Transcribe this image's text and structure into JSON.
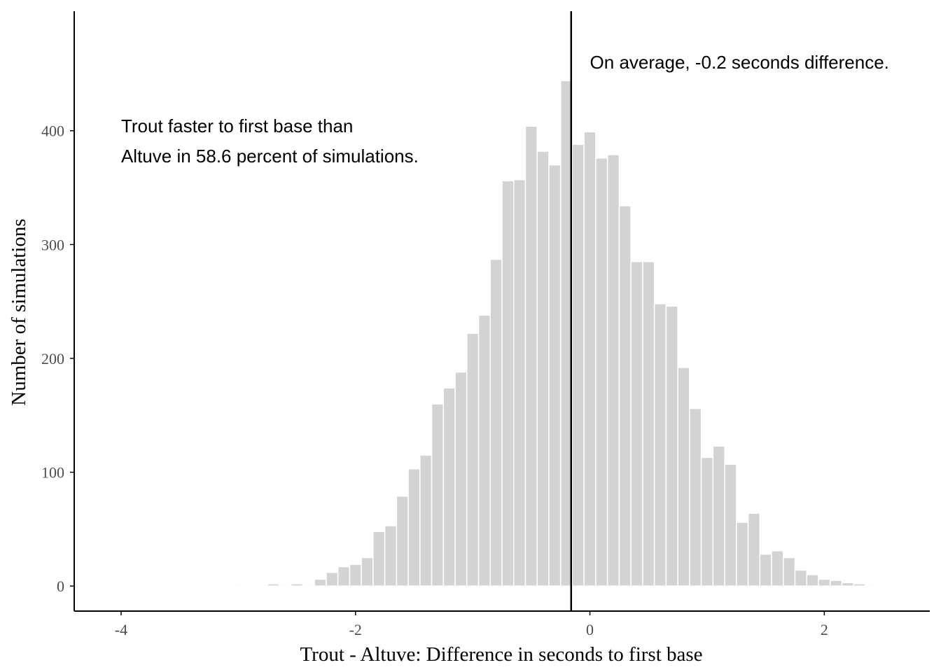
{
  "chart_data": {
    "type": "bar",
    "subtype": "histogram",
    "title": "",
    "xlabel": "Trout - Altuve: Difference in seconds to first base",
    "ylabel": "Number of simulations",
    "xlim": [
      -4.4,
      2.9
    ],
    "ylim": [
      -22,
      505
    ],
    "x_ticks": [
      {
        "value": -4,
        "label": "-4"
      },
      {
        "value": -2,
        "label": "-2"
      },
      {
        "value": 0,
        "label": "0"
      },
      {
        "value": 2,
        "label": "2"
      }
    ],
    "y_ticks": [
      {
        "value": 0,
        "label": "0"
      },
      {
        "value": 100,
        "label": "100"
      },
      {
        "value": 200,
        "label": "200"
      },
      {
        "value": 300,
        "label": "300"
      },
      {
        "value": 400,
        "label": "400"
      }
    ],
    "bin_width": 0.1,
    "series": [
      {
        "bins": [
          {
            "x": -3.0,
            "count": 1
          },
          {
            "x": -2.7,
            "count": 2
          },
          {
            "x": -2.6,
            "count": 1
          },
          {
            "x": -2.5,
            "count": 2
          },
          {
            "x": -2.4,
            "count": 1
          },
          {
            "x": -2.3,
            "count": 6
          },
          {
            "x": -2.2,
            "count": 12
          },
          {
            "x": -2.1,
            "count": 17
          },
          {
            "x": -2.0,
            "count": 19
          },
          {
            "x": -1.9,
            "count": 25
          },
          {
            "x": -1.8,
            "count": 48
          },
          {
            "x": -1.7,
            "count": 53
          },
          {
            "x": -1.6,
            "count": 79
          },
          {
            "x": -1.5,
            "count": 103
          },
          {
            "x": -1.4,
            "count": 115
          },
          {
            "x": -1.3,
            "count": 160
          },
          {
            "x": -1.2,
            "count": 174
          },
          {
            "x": -1.1,
            "count": 188
          },
          {
            "x": -1.0,
            "count": 222
          },
          {
            "x": -0.9,
            "count": 238
          },
          {
            "x": -0.8,
            "count": 287
          },
          {
            "x": -0.7,
            "count": 356
          },
          {
            "x": -0.6,
            "count": 357
          },
          {
            "x": -0.5,
            "count": 404
          },
          {
            "x": -0.4,
            "count": 382
          },
          {
            "x": -0.3,
            "count": 370
          },
          {
            "x": -0.2,
            "count": 444
          },
          {
            "x": -0.1,
            "count": 388
          },
          {
            "x": 0.0,
            "count": 399
          },
          {
            "x": 0.1,
            "count": 376
          },
          {
            "x": 0.2,
            "count": 379
          },
          {
            "x": 0.3,
            "count": 334
          },
          {
            "x": 0.4,
            "count": 285
          },
          {
            "x": 0.5,
            "count": 285
          },
          {
            "x": 0.6,
            "count": 248
          },
          {
            "x": 0.7,
            "count": 246
          },
          {
            "x": 0.8,
            "count": 192
          },
          {
            "x": 0.9,
            "count": 156
          },
          {
            "x": 1.0,
            "count": 113
          },
          {
            "x": 1.1,
            "count": 123
          },
          {
            "x": 1.2,
            "count": 107
          },
          {
            "x": 1.3,
            "count": 56
          },
          {
            "x": 1.4,
            "count": 64
          },
          {
            "x": 1.5,
            "count": 28
          },
          {
            "x": 1.6,
            "count": 31
          },
          {
            "x": 1.7,
            "count": 25
          },
          {
            "x": 1.8,
            "count": 14
          },
          {
            "x": 1.9,
            "count": 10
          },
          {
            "x": 2.0,
            "count": 6
          },
          {
            "x": 2.1,
            "count": 5
          },
          {
            "x": 2.2,
            "count": 3
          },
          {
            "x": 2.3,
            "count": 2
          },
          {
            "x": 2.4,
            "count": 1
          }
        ]
      }
    ],
    "reference_line": {
      "x": -0.16,
      "orientation": "vertical"
    },
    "annotations": [
      {
        "x": -4.0,
        "y": 404,
        "lines": [
          "Trout faster to first base than",
          "Altuve in 58.6 percent of simulations."
        ]
      },
      {
        "x": 0.0,
        "y": 460,
        "lines": [
          "On average, -0.2 seconds difference."
        ]
      }
    ],
    "grid": false,
    "legend": "none",
    "colors": {
      "bar_fill": "#d3d3d3",
      "bar_outline": "#ffffff",
      "axis": "#000000",
      "reference_line": "#000000"
    }
  }
}
